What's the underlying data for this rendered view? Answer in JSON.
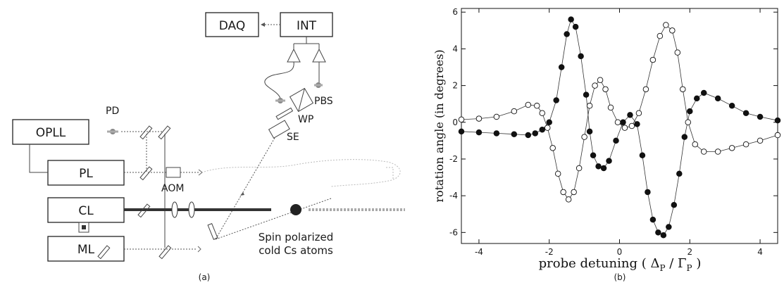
{
  "panel_a": {
    "caption": "(a)",
    "boxes": {
      "daq": "DAQ",
      "int": "INT",
      "opll": "OPLL",
      "pl": "PL",
      "cl": "CL",
      "ml": "ML"
    },
    "labels": {
      "pd": "PD",
      "aom": "AOM",
      "pbs": "PBS",
      "wp": "WP",
      "se": "SE",
      "atoms_line1": "Spin polarized",
      "atoms_line2": "cold Cs atoms"
    }
  },
  "panel_b": {
    "caption": "(b)",
    "xlabel_pre": "probe detuning ( ",
    "xlabel_delta": "Δ",
    "xlabel_sub1": "P",
    "xlabel_mid": " / ",
    "xlabel_gamma": "Γ",
    "xlabel_sub2": "P",
    "xlabel_post": " )",
    "ylabel": "rotation angle (in degrees)"
  },
  "chart_data": {
    "type": "scatter",
    "title": "",
    "xlim": [
      -4.5,
      4.5
    ],
    "ylim": [
      -6.6,
      6.2
    ],
    "xticks": [
      -4,
      -2,
      0,
      2,
      4
    ],
    "yticks": [
      -6,
      -4,
      -2,
      0,
      2,
      4,
      6
    ],
    "grid": false,
    "series": [
      {
        "marker": "filled-circle",
        "color": "#111111",
        "points": [
          [
            -4.5,
            -0.5
          ],
          [
            -4.0,
            -0.55
          ],
          [
            -3.5,
            -0.6
          ],
          [
            -3.0,
            -0.65
          ],
          [
            -2.6,
            -0.7
          ],
          [
            -2.4,
            -0.6
          ],
          [
            -2.2,
            -0.4
          ],
          [
            -2.0,
            0.0
          ],
          [
            -1.8,
            1.2
          ],
          [
            -1.65,
            3.0
          ],
          [
            -1.5,
            4.8
          ],
          [
            -1.38,
            5.6
          ],
          [
            -1.25,
            5.2
          ],
          [
            -1.1,
            3.6
          ],
          [
            -0.95,
            1.5
          ],
          [
            -0.85,
            -0.5
          ],
          [
            -0.75,
            -1.8
          ],
          [
            -0.6,
            -2.4
          ],
          [
            -0.45,
            -2.5
          ],
          [
            -0.3,
            -2.1
          ],
          [
            -0.1,
            -1.0
          ],
          [
            0.1,
            0.0
          ],
          [
            0.3,
            0.4
          ],
          [
            0.5,
            -0.1
          ],
          [
            0.65,
            -1.8
          ],
          [
            0.8,
            -3.8
          ],
          [
            0.95,
            -5.3
          ],
          [
            1.1,
            -6.0
          ],
          [
            1.25,
            -6.15
          ],
          [
            1.4,
            -5.7
          ],
          [
            1.55,
            -4.5
          ],
          [
            1.7,
            -2.8
          ],
          [
            1.85,
            -0.8
          ],
          [
            2.0,
            0.6
          ],
          [
            2.2,
            1.3
          ],
          [
            2.4,
            1.6
          ],
          [
            2.8,
            1.3
          ],
          [
            3.2,
            0.9
          ],
          [
            3.6,
            0.5
          ],
          [
            4.0,
            0.3
          ],
          [
            4.5,
            0.1
          ]
        ]
      },
      {
        "marker": "open-circle",
        "color": "#111111",
        "points": [
          [
            -4.5,
            0.15
          ],
          [
            -4.0,
            0.2
          ],
          [
            -3.5,
            0.3
          ],
          [
            -3.0,
            0.6
          ],
          [
            -2.6,
            0.95
          ],
          [
            -2.35,
            0.9
          ],
          [
            -2.2,
            0.5
          ],
          [
            -2.05,
            -0.3
          ],
          [
            -1.9,
            -1.4
          ],
          [
            -1.75,
            -2.8
          ],
          [
            -1.6,
            -3.8
          ],
          [
            -1.45,
            -4.2
          ],
          [
            -1.3,
            -3.8
          ],
          [
            -1.15,
            -2.5
          ],
          [
            -1.0,
            -0.8
          ],
          [
            -0.85,
            0.9
          ],
          [
            -0.7,
            2.0
          ],
          [
            -0.55,
            2.3
          ],
          [
            -0.4,
            1.8
          ],
          [
            -0.25,
            0.8
          ],
          [
            -0.05,
            0.0
          ],
          [
            0.15,
            -0.3
          ],
          [
            0.35,
            -0.2
          ],
          [
            0.55,
            0.5
          ],
          [
            0.75,
            1.8
          ],
          [
            0.95,
            3.4
          ],
          [
            1.15,
            4.7
          ],
          [
            1.32,
            5.3
          ],
          [
            1.5,
            5.0
          ],
          [
            1.65,
            3.8
          ],
          [
            1.8,
            1.8
          ],
          [
            1.95,
            0.0
          ],
          [
            2.15,
            -1.2
          ],
          [
            2.4,
            -1.6
          ],
          [
            2.8,
            -1.6
          ],
          [
            3.2,
            -1.4
          ],
          [
            3.6,
            -1.2
          ],
          [
            4.0,
            -1.0
          ],
          [
            4.5,
            -0.7
          ]
        ]
      }
    ]
  },
  "colors": {
    "ink": "#111111",
    "beam": "#555555",
    "faint": "#bbbbbb"
  }
}
